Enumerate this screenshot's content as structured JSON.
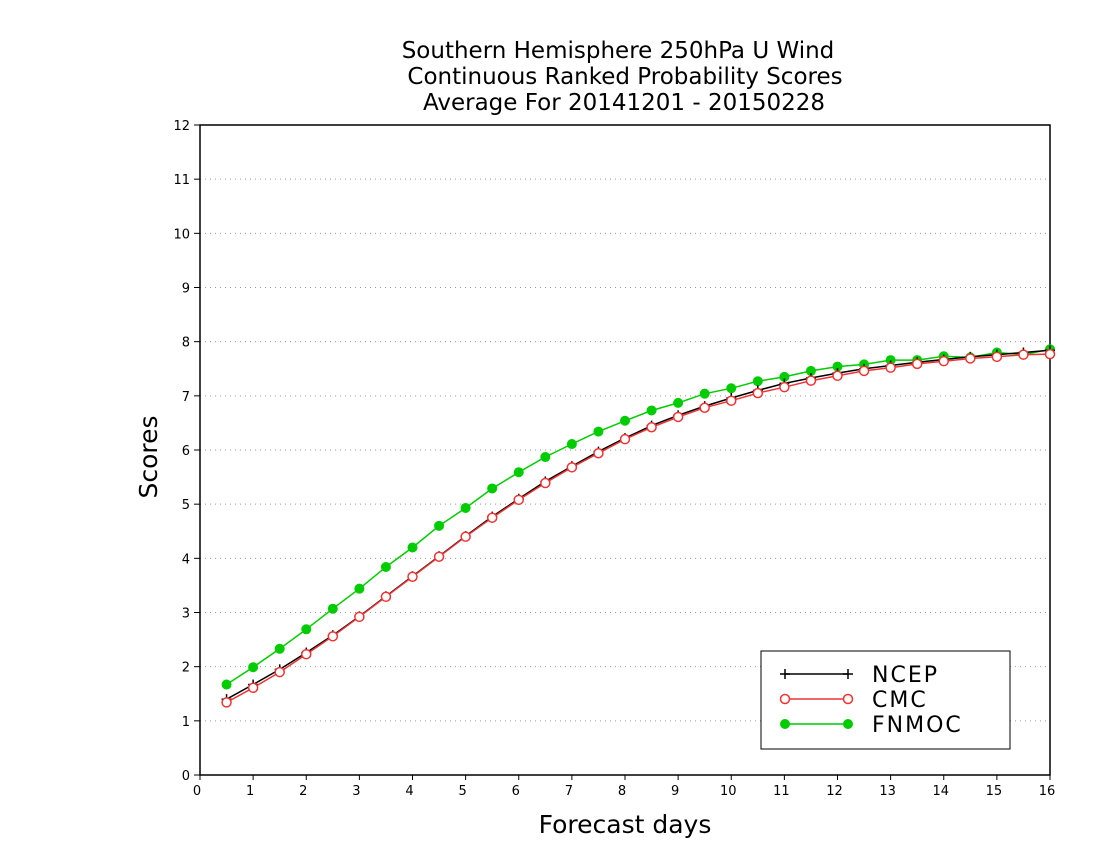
{
  "chart_data": {
    "type": "line",
    "title": [
      "Southern Hemisphere 250hPa U Wind",
      "Continuous Ranked Probability Scores",
      "Average For 20141201 - 20150228"
    ],
    "xlabel": "Forecast days",
    "ylabel": "Scores",
    "xlim": [
      0,
      16
    ],
    "ylim": [
      0,
      12
    ],
    "xticks": [
      "0",
      "1",
      "2",
      "3",
      "4",
      "5",
      "6",
      "7",
      "8",
      "9",
      "10",
      "11",
      "12",
      "13",
      "14",
      "15",
      "16"
    ],
    "yticks": [
      "0",
      "1",
      "2",
      "3",
      "4",
      "5",
      "6",
      "7",
      "8",
      "9",
      "10",
      "11",
      "12"
    ],
    "grid": "horizontal dotted",
    "legend_position": "bottom-right",
    "x": [
      0.5,
      1,
      1.5,
      2,
      2.5,
      3,
      3.5,
      4,
      4.5,
      5,
      5.5,
      6,
      6.5,
      7,
      7.5,
      8,
      8.5,
      9,
      9.5,
      10,
      10.5,
      11,
      11.5,
      12,
      12.5,
      13,
      13.5,
      14,
      14.5,
      15,
      15.5,
      16
    ],
    "series": [
      {
        "name": "NCEP",
        "color": "#000000",
        "marker": "plus",
        "values": [
          1.4,
          1.67,
          1.95,
          2.26,
          2.58,
          2.93,
          3.3,
          3.67,
          4.04,
          4.41,
          4.77,
          5.1,
          5.42,
          5.7,
          5.97,
          6.22,
          6.45,
          6.64,
          6.81,
          6.96,
          7.1,
          7.23,
          7.33,
          7.42,
          7.5,
          7.56,
          7.62,
          7.67,
          7.72,
          7.76,
          7.8,
          7.84
        ]
      },
      {
        "name": "CMC",
        "color": "#ee3333",
        "marker": "open-circle",
        "values": [
          1.34,
          1.61,
          1.9,
          2.23,
          2.56,
          2.92,
          3.29,
          3.66,
          4.03,
          4.4,
          4.75,
          5.08,
          5.39,
          5.68,
          5.94,
          6.2,
          6.42,
          6.61,
          6.78,
          6.91,
          7.05,
          7.16,
          7.28,
          7.37,
          7.46,
          7.52,
          7.59,
          7.64,
          7.69,
          7.72,
          7.76,
          7.77
        ]
      },
      {
        "name": "FNMOC",
        "color": "#00cc00",
        "marker": "filled-circle",
        "values": [
          1.67,
          1.99,
          2.33,
          2.69,
          3.07,
          3.44,
          3.84,
          4.2,
          4.6,
          4.93,
          5.29,
          5.59,
          5.87,
          6.11,
          6.34,
          6.54,
          6.73,
          6.87,
          7.04,
          7.14,
          7.27,
          7.35,
          7.46,
          7.54,
          7.58,
          7.66,
          7.66,
          7.73,
          7.71,
          7.8,
          7.76,
          7.86
        ]
      }
    ]
  }
}
